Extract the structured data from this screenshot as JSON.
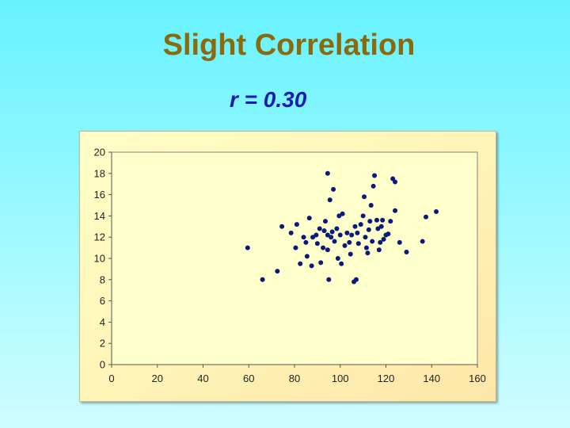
{
  "slide": {
    "title": "Slight Correlation",
    "subtitle": "r = 0.30"
  },
  "colors": {
    "title": "#8B6A0E",
    "subtitle": "#1B1BB0",
    "points": "#0A1A7A",
    "plot_bg": "#FFFFCC"
  },
  "chart_data": {
    "type": "scatter",
    "title": "",
    "xlabel": "",
    "ylabel": "",
    "xlim": [
      0,
      160
    ],
    "ylim": [
      0,
      20
    ],
    "xticks": [
      0,
      20,
      40,
      60,
      80,
      100,
      120,
      140,
      160
    ],
    "yticks": [
      0,
      2,
      4,
      6,
      8,
      10,
      12,
      14,
      16,
      18,
      20
    ],
    "grid": false,
    "legend": "none",
    "points": [
      [
        59.5,
        11.0
      ],
      [
        66.0,
        8.0
      ],
      [
        72.5,
        8.8
      ],
      [
        74.5,
        13.0
      ],
      [
        78.5,
        12.4
      ],
      [
        80.5,
        11.0
      ],
      [
        81.0,
        13.2
      ],
      [
        82.5,
        9.5
      ],
      [
        84.0,
        12.0
      ],
      [
        85.0,
        11.5
      ],
      [
        85.5,
        10.2
      ],
      [
        86.5,
        13.8
      ],
      [
        87.5,
        9.3
      ],
      [
        88.0,
        12.0
      ],
      [
        89.5,
        12.2
      ],
      [
        90.0,
        11.4
      ],
      [
        91.0,
        12.8
      ],
      [
        91.5,
        9.6
      ],
      [
        92.5,
        11.0
      ],
      [
        93.0,
        12.6
      ],
      [
        93.5,
        13.5
      ],
      [
        94.5,
        12.2
      ],
      [
        94.5,
        18.0
      ],
      [
        94.5,
        10.8
      ],
      [
        95.0,
        8.0
      ],
      [
        95.5,
        15.5
      ],
      [
        96.0,
        12.0
      ],
      [
        96.5,
        12.5
      ],
      [
        97.0,
        16.5
      ],
      [
        97.5,
        11.6
      ],
      [
        98.5,
        12.8
      ],
      [
        99.0,
        10.0
      ],
      [
        99.5,
        14.0
      ],
      [
        100.0,
        12.2
      ],
      [
        100.5,
        9.5
      ],
      [
        101.0,
        14.2
      ],
      [
        102.0,
        11.2
      ],
      [
        103.0,
        12.4
      ],
      [
        104.0,
        11.5
      ],
      [
        104.5,
        10.4
      ],
      [
        105.0,
        12.2
      ],
      [
        106.0,
        7.8
      ],
      [
        106.5,
        13.0
      ],
      [
        107.0,
        8.0
      ],
      [
        107.5,
        12.4
      ],
      [
        108.0,
        11.4
      ],
      [
        109.0,
        13.2
      ],
      [
        110.0,
        14.0
      ],
      [
        110.5,
        15.8
      ],
      [
        111.0,
        12.0
      ],
      [
        111.5,
        11.0
      ],
      [
        112.0,
        10.5
      ],
      [
        112.5,
        12.7
      ],
      [
        113.0,
        13.5
      ],
      [
        113.5,
        15.0
      ],
      [
        114.0,
        11.6
      ],
      [
        114.5,
        16.8
      ],
      [
        115.0,
        17.8
      ],
      [
        116.0,
        13.6
      ],
      [
        116.5,
        12.8
      ],
      [
        117.0,
        10.8
      ],
      [
        117.5,
        11.5
      ],
      [
        118.0,
        13.0
      ],
      [
        118.5,
        13.6
      ],
      [
        119.0,
        11.8
      ],
      [
        120.0,
        12.2
      ],
      [
        121.0,
        12.3
      ],
      [
        122.0,
        13.5
      ],
      [
        123.0,
        17.5
      ],
      [
        124.0,
        14.5
      ],
      [
        124.0,
        17.2
      ],
      [
        126.0,
        11.5
      ],
      [
        129.0,
        10.6
      ],
      [
        136.0,
        11.6
      ],
      [
        137.5,
        13.9
      ],
      [
        142.0,
        14.4
      ]
    ]
  }
}
